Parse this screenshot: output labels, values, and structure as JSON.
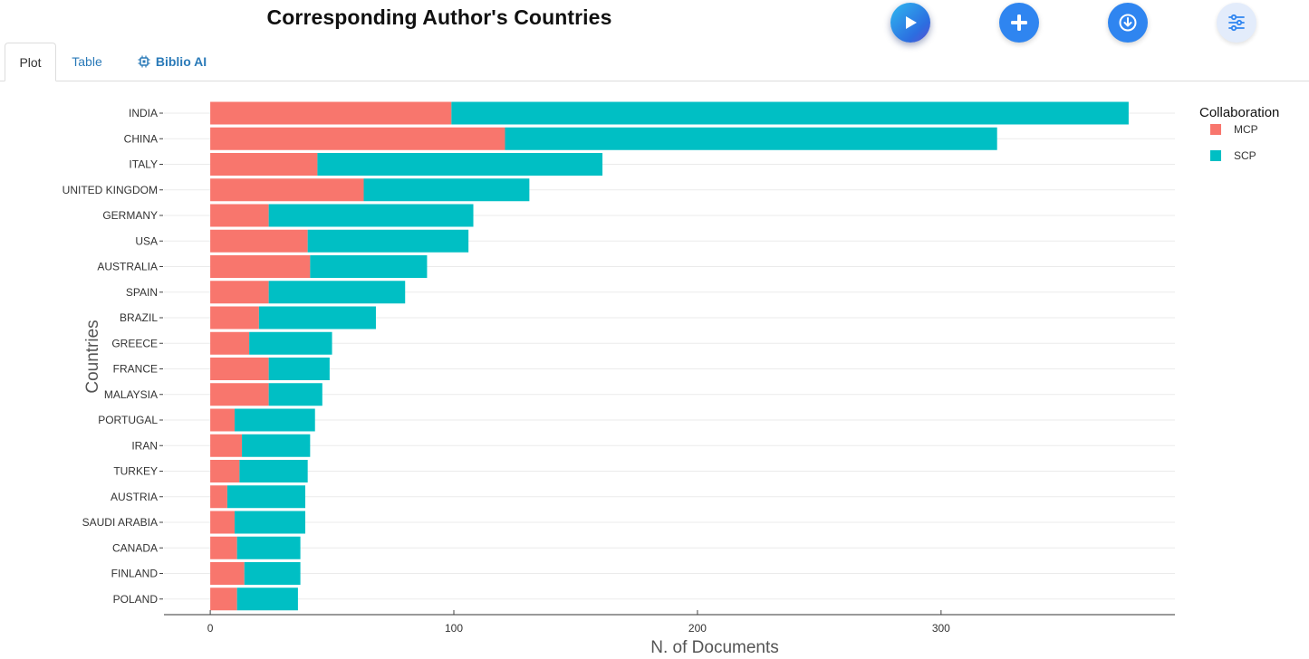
{
  "header": {
    "title": "Corresponding Author's Countries"
  },
  "tabs": [
    {
      "label": "Plot"
    },
    {
      "label": "Table"
    },
    {
      "label": "Biblio AI"
    }
  ],
  "colors": {
    "mcp": "#F8766D",
    "scp": "#00BFC4",
    "accent": "#2f85f0"
  },
  "chart_data": {
    "type": "bar",
    "orientation": "horizontal",
    "stacked": true,
    "title": "",
    "xlabel": "N. of Documents",
    "ylabel": "Countries",
    "xlim": [
      -19,
      396
    ],
    "xticks": [
      0,
      100,
      200,
      300
    ],
    "legend_title": "Collaboration",
    "legend_position": "top-right",
    "categories": [
      "INDIA",
      "CHINA",
      "ITALY",
      "UNITED KINGDOM",
      "GERMANY",
      "USA",
      "AUSTRALIA",
      "SPAIN",
      "BRAZIL",
      "GREECE",
      "FRANCE",
      "MALAYSIA",
      "PORTUGAL",
      "IRAN",
      "TURKEY",
      "AUSTRIA",
      "SAUDI ARABIA",
      "CANADA",
      "FINLAND",
      "POLAND"
    ],
    "series": [
      {
        "name": "MCP",
        "values": [
          99,
          121,
          44,
          63,
          24,
          40,
          41,
          24,
          20,
          16,
          24,
          24,
          10,
          13,
          12,
          7,
          10,
          11,
          14,
          11
        ]
      },
      {
        "name": "SCP",
        "values": [
          278,
          202,
          117,
          68,
          84,
          66,
          48,
          56,
          48,
          34,
          25,
          22,
          33,
          28,
          28,
          32,
          29,
          26,
          23,
          25
        ]
      }
    ]
  }
}
